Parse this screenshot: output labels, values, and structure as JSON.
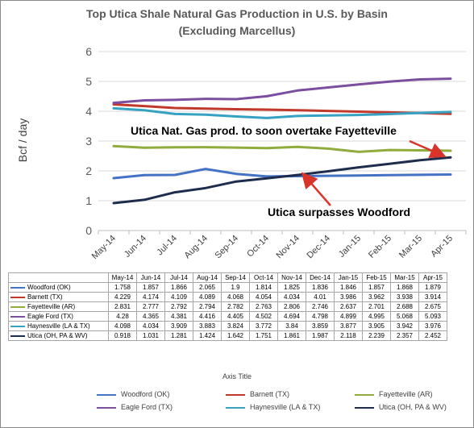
{
  "chart_data": {
    "type": "line",
    "title": "Top Utica Shale Natural Gas Production in U.S. by Basin",
    "subtitle": "(Excluding Marcellus)",
    "ylabel": "Bcf / day",
    "xlabel": "Axis Title",
    "ylim": [
      0,
      6
    ],
    "yticks": [
      "0",
      "1",
      "2",
      "3",
      "4",
      "5",
      "6"
    ],
    "grid": true,
    "legend_position": "bottom",
    "categories": [
      "May-14",
      "Jun-14",
      "Jul-14",
      "Aug-14",
      "Sep-14",
      "Oct-14",
      "Nov-14",
      "Dec-14",
      "Jan-15",
      "Feb-15",
      "Mar-15",
      "Apr-15"
    ],
    "series": [
      {
        "name": "Woodford (OK)",
        "color": "#4472c4",
        "values": [
          1.758,
          1.857,
          1.866,
          2.065,
          1.9,
          1.814,
          1.825,
          1.836,
          1.846,
          1.857,
          1.868,
          1.879
        ],
        "labels": [
          "1.758",
          "1.857",
          "1.866",
          "2.065",
          "1.9",
          "1.814",
          "1.825",
          "1.836",
          "1.846",
          "1.857",
          "1.868",
          "1.879"
        ]
      },
      {
        "name": "Barnett (TX)",
        "color": "#c0392b",
        "values": [
          4.229,
          4.174,
          4.109,
          4.089,
          4.068,
          4.054,
          4.034,
          4.01,
          3.986,
          3.962,
          3.938,
          3.914
        ],
        "labels": [
          "4.229",
          "4.174",
          "4.109",
          "4.089",
          "4.068",
          "4.054",
          "4.034",
          "4.01",
          "3.986",
          "3.962",
          "3.938",
          "3.914"
        ]
      },
      {
        "name": "Fayetteville (AR)",
        "color": "#8fac3c",
        "values": [
          2.831,
          2.777,
          2.792,
          2.794,
          2.782,
          2.763,
          2.806,
          2.746,
          2.637,
          2.701,
          2.688,
          2.675
        ],
        "labels": [
          "2.831",
          "2.777",
          "2.792",
          "2.794",
          "2.782",
          "2.763",
          "2.806",
          "2.746",
          "2.637",
          "2.701",
          "2.688",
          "2.675"
        ]
      },
      {
        "name": "Eagle Ford (TX)",
        "color": "#7b4fa0",
        "values": [
          4.28,
          4.365,
          4.381,
          4.416,
          4.405,
          4.502,
          4.694,
          4.798,
          4.899,
          4.995,
          5.068,
          5.093
        ],
        "labels": [
          "4.28",
          "4.365",
          "4.381",
          "4.416",
          "4.405",
          "4.502",
          "4.694",
          "4.798",
          "4.899",
          "4.995",
          "5.068",
          "5.093"
        ]
      },
      {
        "name": "Haynesville (LA & TX)",
        "color": "#36a2c2",
        "values": [
          4.098,
          4.034,
          3.909,
          3.883,
          3.824,
          3.772,
          3.84,
          3.859,
          3.877,
          3.905,
          3.942,
          3.976
        ],
        "labels": [
          "4.098",
          "4.034",
          "3.909",
          "3.883",
          "3.824",
          "3.772",
          "3.84",
          "3.859",
          "3.877",
          "3.905",
          "3.942",
          "3.976"
        ]
      },
      {
        "name": "Utica (OH, PA & WV)",
        "color": "#1f2d4d",
        "values": [
          0.918,
          1.031,
          1.281,
          1.424,
          1.642,
          1.751,
          1.861,
          1.987,
          2.118,
          2.239,
          2.357,
          2.452
        ],
        "labels": [
          "0.918",
          "1.031",
          "1.281",
          "1.424",
          "1.642",
          "1.751",
          "1.861",
          "1.987",
          "2.118",
          "2.239",
          "2.357",
          "2.452"
        ]
      }
    ],
    "annotations": [
      "Utica Nat. Gas prod. to soon overtake Fayetteville",
      "Utica surpasses Woodford"
    ],
    "arrow_color": "#d9342b"
  }
}
